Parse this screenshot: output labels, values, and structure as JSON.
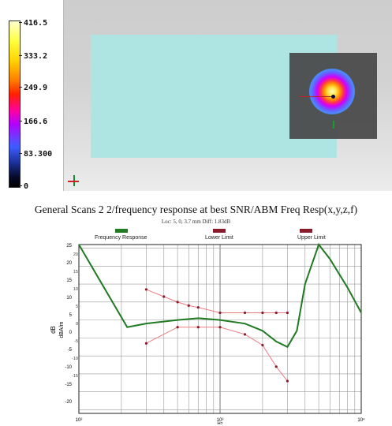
{
  "colorbar": {
    "labels": [
      "416.5",
      "333.2",
      "249.9",
      "166.6",
      "83.300",
      "0"
    ]
  },
  "viewport": {
    "background": "#d3d3d3",
    "field_color": "#aee5e3",
    "probe_color": "#464646"
  },
  "chart": {
    "title": "General Scans 2 2/frequency response at best SNR/ABM Freq Resp(x,y,z,f)",
    "subtitle": "Loc: 5, 0, 3.7 mm Diff: 1.83dB",
    "legend": [
      "Frequency Response",
      "Lower Limit",
      "Upper Limit"
    ],
    "y_left_label": "dB",
    "y_right_label": "dBA/m",
    "x_label": "Hz",
    "x_ticks": [
      "10²",
      "10³",
      "10⁴"
    ],
    "y_left_ticks": [
      "25",
      "20",
      "15",
      "10",
      "5",
      "0",
      "-5",
      "-10",
      "-15",
      "-20"
    ],
    "y_right_ticks": [
      "20",
      "15",
      "10",
      "5",
      "0",
      "-5",
      "-10",
      "-15"
    ]
  },
  "chart_data": {
    "type": "line",
    "title": "General Scans 2 2/frequency response at best SNR/ABM Freq Resp(x,y,z,f)",
    "subtitle": "Loc: 5, 0, 3.7 mm Diff: 1.83dB",
    "xlabel": "Hz",
    "ylabel": "dB",
    "xscale": "log",
    "xlim": [
      100,
      10000
    ],
    "ylim": [
      -21,
      26
    ],
    "legend_position": "top",
    "grid": true,
    "series": [
      {
        "name": "Frequency Response",
        "color": "#1f7a22",
        "x": [
          100,
          220,
          300,
          500,
          700,
          1000,
          1500,
          2000,
          2500,
          3000,
          3500,
          4000,
          5000,
          6000,
          8000,
          10000
        ],
        "y": [
          29,
          3,
          4,
          5,
          5.5,
          5,
          4,
          2,
          -1,
          -2.5,
          2,
          15,
          27,
          22,
          14,
          7
        ]
      },
      {
        "name": "Lower Limit",
        "color": "#ee7a82",
        "x": [
          300,
          500,
          700,
          1000,
          1500,
          2000,
          2500,
          3000
        ],
        "y": [
          -1.5,
          3,
          3,
          3,
          1,
          -2,
          -8,
          -12
        ]
      },
      {
        "name": "Upper Limit",
        "color": "#ee7a82",
        "x": [
          300,
          400,
          500,
          600,
          700,
          1000,
          1500,
          2000,
          2500,
          3000
        ],
        "y": [
          13.5,
          11.5,
          10,
          9,
          8.5,
          7,
          7,
          7,
          7,
          7
        ]
      }
    ]
  }
}
